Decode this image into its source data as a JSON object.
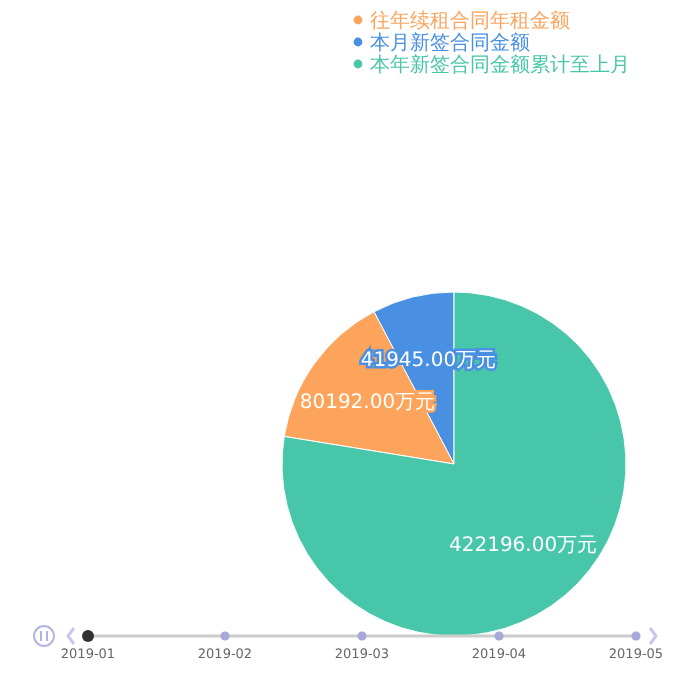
{
  "chart_data": {
    "type": "pie",
    "categories": [
      "本月新签合同金额",
      "往年续租合同年租金额",
      "本年新签合同金额累计至上月"
    ],
    "values": [
      41945,
      80192,
      422196
    ],
    "value_labels": [
      "41945.00万元",
      "80192.00万元",
      "422196.00万元"
    ],
    "colors": [
      "#4a90e2",
      "#fca45c",
      "#48c6a9"
    ],
    "legend": "top",
    "annotations": [
      "2019-01",
      "2019-02",
      "2019-03",
      "2019-04",
      "2019-05"
    ]
  }
}
